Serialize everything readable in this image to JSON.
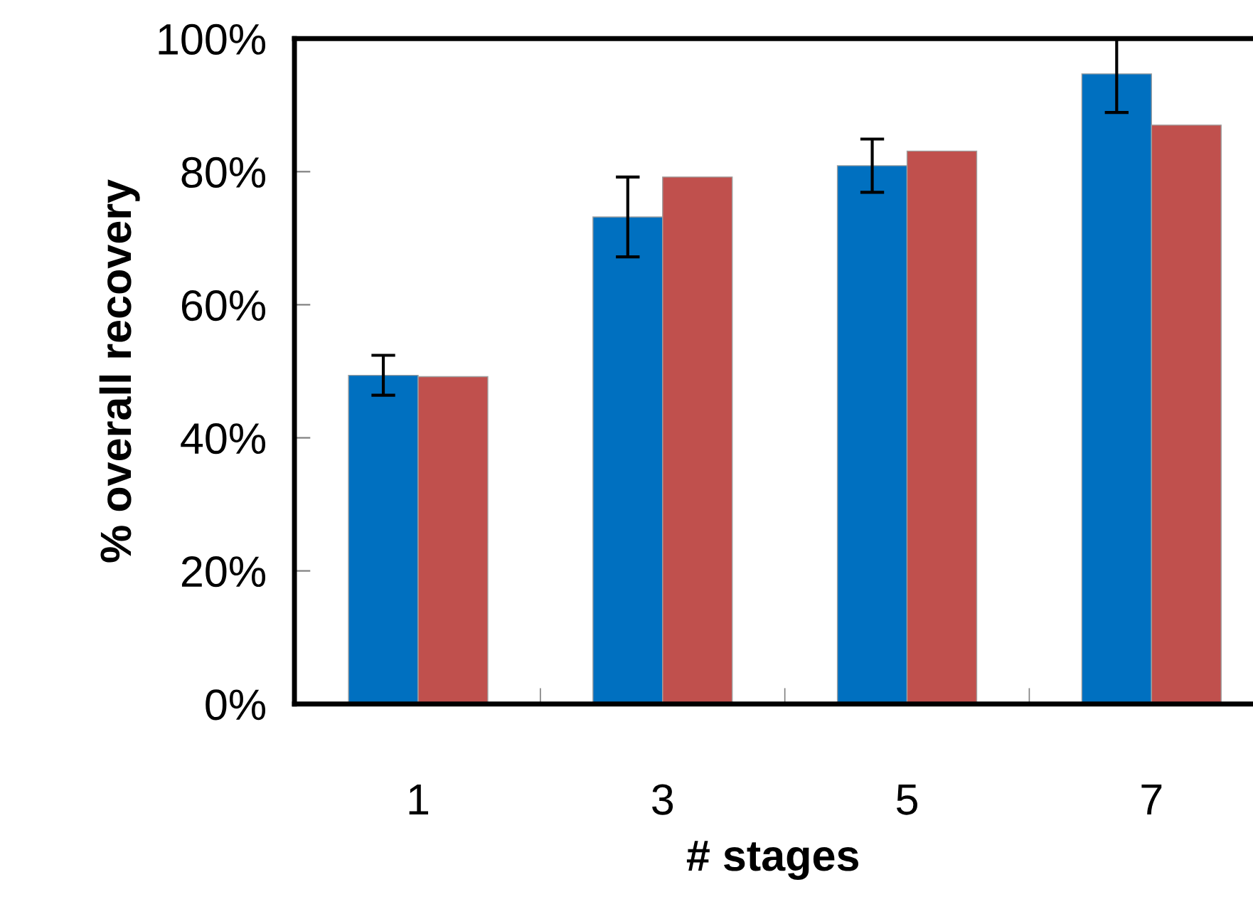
{
  "chart_data": {
    "type": "bar",
    "xlabel": "# stages",
    "ylabel": "% overall recovery",
    "categories": [
      "1",
      "3",
      "5",
      "7"
    ],
    "series": [
      {
        "color": "#0070c0",
        "values": [
          49.4,
          73.2,
          80.9,
          94.7
        ],
        "errors": [
          3,
          6,
          4,
          [
            88.9,
            100
          ]
        ]
      },
      {
        "color": "#c0504d",
        "values": [
          49.2,
          79.2,
          83.1,
          87.0
        ]
      }
    ],
    "ylim": [
      0,
      100
    ],
    "yticks": [
      {
        "value": 0,
        "label": "0%"
      },
      {
        "value": 20,
        "label": "20%"
      },
      {
        "value": 40,
        "label": "40%"
      },
      {
        "value": 60,
        "label": "60%"
      },
      {
        "value": 80,
        "label": "80%"
      },
      {
        "value": 100,
        "label": "100%"
      }
    ],
    "grid": false,
    "legend": false
  }
}
